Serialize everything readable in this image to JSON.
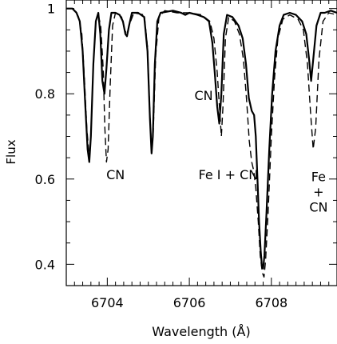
{
  "chart_data": {
    "type": "line",
    "xlabel": "Wavelength (Å)",
    "ylabel": "Flux",
    "xlim": [
      6703.0,
      6709.6
    ],
    "ylim": [
      0.35,
      1.02
    ],
    "x_ticks": [
      6704,
      6706,
      6708
    ],
    "x_tick_labels": [
      "6704",
      "6706",
      "6708"
    ],
    "y_ticks": [
      0.4,
      0.6,
      0.8,
      1.0
    ],
    "y_tick_labels": [
      "0.4",
      "0.6",
      "0.8",
      "1"
    ],
    "grid": false,
    "legend": "none",
    "series": [
      {
        "style": "solid",
        "points": [
          [
            6703.0,
            1.0
          ],
          [
            6703.15,
            1.0
          ],
          [
            6703.25,
            0.99
          ],
          [
            6703.33,
            0.97
          ],
          [
            6703.4,
            0.9
          ],
          [
            6703.46,
            0.78
          ],
          [
            6703.52,
            0.67
          ],
          [
            6703.56,
            0.64
          ],
          [
            6703.6,
            0.7
          ],
          [
            6703.66,
            0.87
          ],
          [
            6703.72,
            0.97
          ],
          [
            6703.78,
            0.99
          ],
          [
            6703.83,
            0.94
          ],
          [
            6703.88,
            0.83
          ],
          [
            6703.93,
            0.8
          ],
          [
            6703.98,
            0.86
          ],
          [
            6704.04,
            0.95
          ],
          [
            6704.1,
            0.99
          ],
          [
            6704.2,
            0.99
          ],
          [
            6704.3,
            0.985
          ],
          [
            6704.38,
            0.97
          ],
          [
            6704.44,
            0.94
          ],
          [
            6704.48,
            0.935
          ],
          [
            6704.53,
            0.96
          ],
          [
            6704.6,
            0.99
          ],
          [
            6704.75,
            0.99
          ],
          [
            6704.9,
            0.98
          ],
          [
            6704.98,
            0.9
          ],
          [
            6705.04,
            0.74
          ],
          [
            6705.08,
            0.66
          ],
          [
            6705.11,
            0.7
          ],
          [
            6705.16,
            0.87
          ],
          [
            6705.22,
            0.97
          ],
          [
            6705.3,
            0.99
          ],
          [
            6705.6,
            0.995
          ],
          [
            6705.8,
            0.99
          ],
          [
            6705.9,
            0.985
          ],
          [
            6706.0,
            0.99
          ],
          [
            6706.2,
            0.985
          ],
          [
            6706.35,
            0.98
          ],
          [
            6706.48,
            0.97
          ],
          [
            6706.56,
            0.92
          ],
          [
            6706.62,
            0.85
          ],
          [
            6706.68,
            0.77
          ],
          [
            6706.73,
            0.73
          ],
          [
            6706.78,
            0.8
          ],
          [
            6706.84,
            0.94
          ],
          [
            6706.92,
            0.985
          ],
          [
            6707.05,
            0.98
          ],
          [
            6707.2,
            0.96
          ],
          [
            6707.3,
            0.93
          ],
          [
            6707.38,
            0.87
          ],
          [
            6707.45,
            0.79
          ],
          [
            6707.52,
            0.76
          ],
          [
            6707.58,
            0.75
          ],
          [
            6707.62,
            0.7
          ],
          [
            6707.66,
            0.6
          ],
          [
            6707.7,
            0.5
          ],
          [
            6707.74,
            0.43
          ],
          [
            6707.77,
            0.395
          ],
          [
            6707.8,
            0.39
          ],
          [
            6707.83,
            0.42
          ],
          [
            6707.88,
            0.52
          ],
          [
            6707.95,
            0.67
          ],
          [
            6708.02,
            0.8
          ],
          [
            6708.1,
            0.9
          ],
          [
            6708.2,
            0.96
          ],
          [
            6708.3,
            0.985
          ],
          [
            6708.45,
            0.99
          ],
          [
            6708.6,
            0.985
          ],
          [
            6708.75,
            0.97
          ],
          [
            6708.85,
            0.94
          ],
          [
            6708.92,
            0.88
          ],
          [
            6708.97,
            0.83
          ],
          [
            6709.02,
            0.88
          ],
          [
            6709.1,
            0.96
          ],
          [
            6709.2,
            0.99
          ],
          [
            6709.3,
            0.99
          ],
          [
            6709.45,
            0.995
          ],
          [
            6709.6,
            0.99
          ]
        ]
      },
      {
        "style": "dashed",
        "points": [
          [
            6703.0,
            1.0
          ],
          [
            6703.2,
            1.0
          ],
          [
            6703.3,
            0.98
          ],
          [
            6703.38,
            0.94
          ],
          [
            6703.44,
            0.84
          ],
          [
            6703.5,
            0.72
          ],
          [
            6703.56,
            0.65
          ],
          [
            6703.6,
            0.7
          ],
          [
            6703.66,
            0.87
          ],
          [
            6703.72,
            0.97
          ],
          [
            6703.78,
            0.985
          ],
          [
            6703.84,
            0.96
          ],
          [
            6703.9,
            0.86
          ],
          [
            6703.94,
            0.72
          ],
          [
            6703.98,
            0.64
          ],
          [
            6704.02,
            0.67
          ],
          [
            6704.07,
            0.82
          ],
          [
            6704.13,
            0.96
          ],
          [
            6704.2,
            0.99
          ],
          [
            6704.35,
            0.98
          ],
          [
            6704.42,
            0.95
          ],
          [
            6704.48,
            0.94
          ],
          [
            6704.55,
            0.965
          ],
          [
            6704.65,
            0.99
          ],
          [
            6704.9,
            0.985
          ],
          [
            6704.98,
            0.91
          ],
          [
            6705.04,
            0.75
          ],
          [
            6705.08,
            0.67
          ],
          [
            6705.12,
            0.71
          ],
          [
            6705.18,
            0.89
          ],
          [
            6705.26,
            0.98
          ],
          [
            6705.4,
            0.995
          ],
          [
            6705.7,
            0.99
          ],
          [
            6706.0,
            0.99
          ],
          [
            6706.3,
            0.985
          ],
          [
            6706.5,
            0.97
          ],
          [
            6706.6,
            0.93
          ],
          [
            6706.68,
            0.85
          ],
          [
            6706.74,
            0.76
          ],
          [
            6706.78,
            0.7
          ],
          [
            6706.82,
            0.77
          ],
          [
            6706.88,
            0.93
          ],
          [
            6706.96,
            0.98
          ],
          [
            6707.1,
            0.97
          ],
          [
            6707.22,
            0.94
          ],
          [
            6707.32,
            0.88
          ],
          [
            6707.4,
            0.78
          ],
          [
            6707.46,
            0.69
          ],
          [
            6707.52,
            0.64
          ],
          [
            6707.57,
            0.62
          ],
          [
            6707.62,
            0.58
          ],
          [
            6707.68,
            0.5
          ],
          [
            6707.73,
            0.42
          ],
          [
            6707.78,
            0.38
          ],
          [
            6707.82,
            0.37
          ],
          [
            6707.86,
            0.41
          ],
          [
            6707.92,
            0.52
          ],
          [
            6708.0,
            0.7
          ],
          [
            6708.08,
            0.84
          ],
          [
            6708.16,
            0.93
          ],
          [
            6708.28,
            0.975
          ],
          [
            6708.45,
            0.985
          ],
          [
            6708.65,
            0.975
          ],
          [
            6708.78,
            0.95
          ],
          [
            6708.88,
            0.87
          ],
          [
            6708.96,
            0.75
          ],
          [
            6709.02,
            0.67
          ],
          [
            6709.08,
            0.72
          ],
          [
            6709.16,
            0.88
          ],
          [
            6709.26,
            0.97
          ],
          [
            6709.4,
            0.99
          ],
          [
            6709.6,
            0.985
          ]
        ]
      }
    ],
    "annotations": [
      {
        "lines": [
          "CN"
        ],
        "x": 6704.2,
        "y": 0.6
      },
      {
        "lines": [
          "CN"
        ],
        "x": 6706.35,
        "y": 0.785
      },
      {
        "lines": [
          "Fe I + CN"
        ],
        "x": 6706.95,
        "y": 0.6
      },
      {
        "lines": [
          "Fe",
          "+",
          "CN"
        ],
        "x": 6709.15,
        "y": 0.595
      }
    ]
  }
}
